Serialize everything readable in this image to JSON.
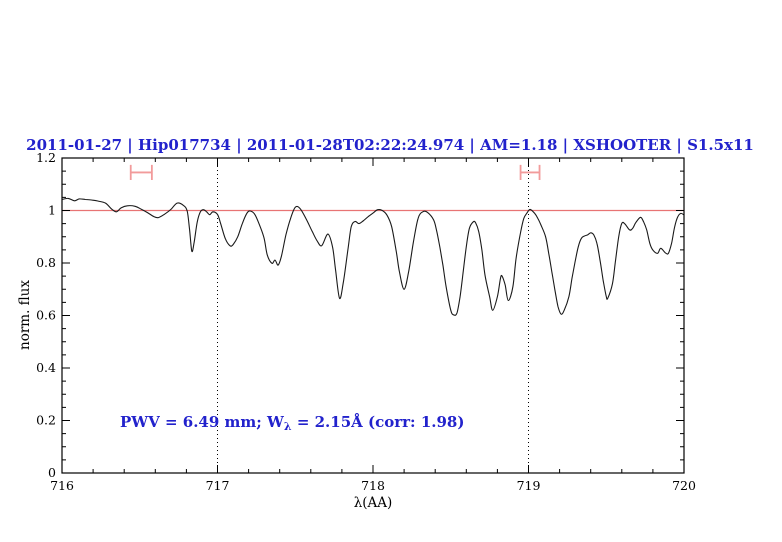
{
  "page": {
    "background": "#ffffff"
  },
  "chart_data": {
    "type": "line",
    "title": "2011-01-27 | Hip017734 | 2011-01-28T02:22:24.974 | AM=1.18 | XSHOOTER | S1.5x11",
    "xlabel": "λ(AA)",
    "ylabel": "norm. flux",
    "xlim": [
      716,
      720
    ],
    "ylim": [
      0,
      1.2
    ],
    "x_major_ticks": [
      716,
      717,
      718,
      719,
      720
    ],
    "x_tick_labels": [
      "716",
      "717",
      "718",
      "719",
      "720"
    ],
    "x_minor_step": 0.2,
    "y_major_ticks": [
      0,
      0.2,
      0.4,
      0.6,
      0.8,
      1.0,
      1.2
    ],
    "y_tick_labels": [
      "0",
      "0.2",
      "0.4",
      "0.6",
      "0.8",
      "1",
      "1.2"
    ],
    "y_minor_step": 0.05,
    "grid": false,
    "legend": "none",
    "continuum_line": {
      "flux": 1.0,
      "color": "#e87474"
    },
    "dotted_lines_x": [
      717,
      719
    ],
    "band_markers": [
      {
        "lambda_center": 716.51,
        "half_width_aa": 0.068,
        "flux": 1.145,
        "cap_half_flux": 0.029
      },
      {
        "lambda_center": 719.01,
        "half_width_aa": 0.061,
        "flux": 1.145,
        "cap_half_flux": 0.029
      }
    ],
    "annotation": {
      "prefix": "PWV  =  6.49  mm;  W",
      "sub": "λ",
      "suffix": "  =  2.15Å  (corr:  1.98)"
    },
    "series": [
      {
        "name": "telluric-spectrum",
        "color": "#1a1a1a",
        "x": [
          716.0,
          716.04,
          716.08,
          716.11,
          716.15,
          716.19,
          716.23,
          716.28,
          716.32,
          716.35,
          716.38,
          716.42,
          716.47,
          716.51,
          716.55,
          716.59,
          716.62,
          716.66,
          716.7,
          716.74,
          716.78,
          716.805,
          716.82,
          716.835,
          716.85,
          716.87,
          716.89,
          716.91,
          716.93,
          716.95,
          716.97,
          717.0,
          717.02,
          717.05,
          717.08,
          717.1,
          717.13,
          717.16,
          717.19,
          717.21,
          717.24,
          717.27,
          717.3,
          717.32,
          717.35,
          717.37,
          717.39,
          717.41,
          717.44,
          717.47,
          717.5,
          717.53,
          717.57,
          717.61,
          717.64,
          717.67,
          717.71,
          717.74,
          717.76,
          717.785,
          717.81,
          717.84,
          717.86,
          717.885,
          717.91,
          717.94,
          717.97,
          718.0,
          718.03,
          718.06,
          718.09,
          718.12,
          718.15,
          718.17,
          718.2,
          718.23,
          718.26,
          718.29,
          718.32,
          718.35,
          718.39,
          718.41,
          718.43,
          718.45,
          718.47,
          718.5,
          718.52,
          718.54,
          718.56,
          718.58,
          718.6,
          718.62,
          718.645,
          718.66,
          718.68,
          718.7,
          718.72,
          718.75,
          718.77,
          718.8,
          718.82,
          718.83,
          718.85,
          718.87,
          718.9,
          718.92,
          718.95,
          718.97,
          718.99,
          719.01,
          719.04,
          719.06,
          719.08,
          719.11,
          719.13,
          719.15,
          719.17,
          719.19,
          719.21,
          719.23,
          719.26,
          719.28,
          719.3,
          719.32,
          719.34,
          719.36,
          719.38,
          719.4,
          719.42,
          719.44,
          719.46,
          719.48,
          719.5,
          719.51,
          719.54,
          719.56,
          719.58,
          719.6,
          719.62,
          719.65,
          719.67,
          719.69,
          719.72,
          719.74,
          719.76,
          719.78,
          719.8,
          719.83,
          719.85,
          719.88,
          719.9,
          719.92,
          719.94,
          719.96,
          719.98,
          720.0
        ],
        "y": [
          1.042,
          1.046,
          1.037,
          1.044,
          1.042,
          1.04,
          1.036,
          1.028,
          1.005,
          0.995,
          1.01,
          1.018,
          1.016,
          1.005,
          0.992,
          0.977,
          0.973,
          0.986,
          1.004,
          1.028,
          1.02,
          0.998,
          0.93,
          0.845,
          0.88,
          0.957,
          0.995,
          1.003,
          0.995,
          0.984,
          0.995,
          0.985,
          0.951,
          0.893,
          0.866,
          0.87,
          0.9,
          0.951,
          0.99,
          0.998,
          0.985,
          0.945,
          0.894,
          0.83,
          0.799,
          0.811,
          0.792,
          0.824,
          0.907,
          0.97,
          1.012,
          1.008,
          0.968,
          0.919,
          0.885,
          0.866,
          0.91,
          0.86,
          0.77,
          0.665,
          0.73,
          0.856,
          0.938,
          0.958,
          0.95,
          0.962,
          0.977,
          0.99,
          1.003,
          1.0,
          0.982,
          0.938,
          0.843,
          0.767,
          0.7,
          0.77,
          0.88,
          0.97,
          0.995,
          0.993,
          0.964,
          0.92,
          0.86,
          0.79,
          0.71,
          0.62,
          0.602,
          0.61,
          0.672,
          0.767,
          0.862,
          0.932,
          0.957,
          0.953,
          0.92,
          0.85,
          0.754,
          0.672,
          0.62,
          0.672,
          0.742,
          0.75,
          0.716,
          0.657,
          0.71,
          0.818,
          0.919,
          0.97,
          0.99,
          1.004,
          0.989,
          0.97,
          0.945,
          0.9,
          0.837,
          0.767,
          0.697,
          0.634,
          0.605,
          0.621,
          0.672,
          0.742,
          0.805,
          0.862,
          0.894,
          0.903,
          0.907,
          0.915,
          0.907,
          0.875,
          0.811,
          0.735,
          0.672,
          0.666,
          0.722,
          0.811,
          0.9,
          0.951,
          0.949,
          0.926,
          0.932,
          0.954,
          0.974,
          0.957,
          0.926,
          0.875,
          0.849,
          0.837,
          0.856,
          0.839,
          0.837,
          0.875,
          0.938,
          0.976,
          0.989,
          0.983
        ]
      }
    ],
    "colors": {
      "title_blue": "#2222cc",
      "annotation_blue": "#2222cc",
      "continuum_red": "#e87474",
      "marker_salmon": "#f29b9b",
      "spectrum_black": "#1a1a1a",
      "axis_black": "#000000"
    }
  }
}
